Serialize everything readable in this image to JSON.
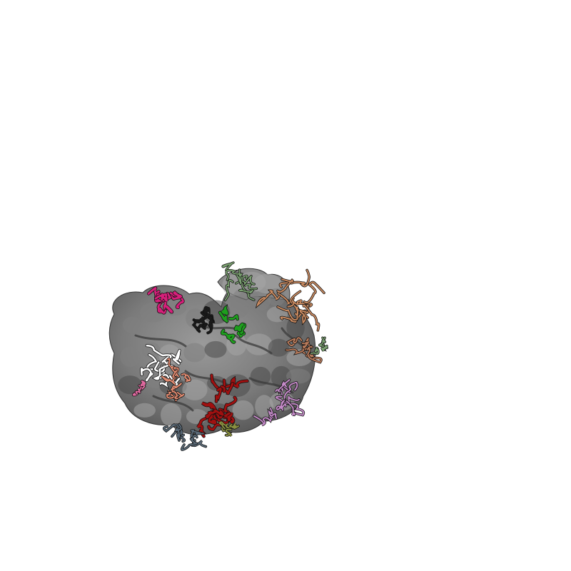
{
  "scene": {
    "background": "#ffffff",
    "subject": "ribosome-surface-with-protein-ribbons",
    "colors": {
      "surface": "#808080",
      "surface_shadow": "#4a4a4a",
      "surface_highlight": "#a6a6a6",
      "magenta": "#d61f7a",
      "pink": "#e06aa0",
      "salmon": "#e08a70",
      "brown": "#b87a5a",
      "peach": "#c98a60",
      "dark_red": "#a01010",
      "green": "#1e9e1e",
      "sage": "#7aa070",
      "olive": "#8a9040",
      "lilac": "#c48ac8",
      "slate": "#5a6a78",
      "white": "#ffffff",
      "black": "#1a1a1a"
    }
  }
}
